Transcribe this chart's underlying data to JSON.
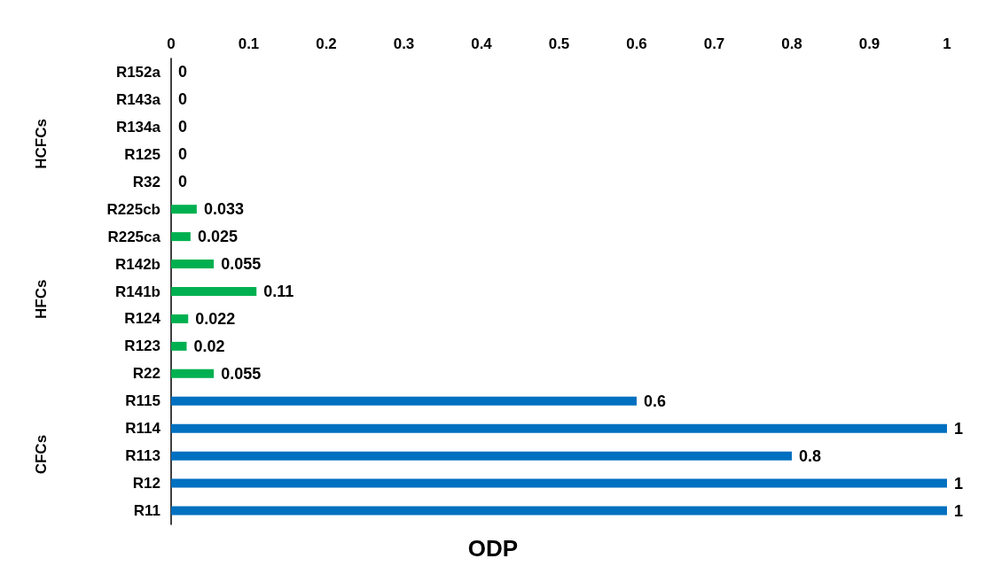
{
  "chart_data": {
    "type": "bar",
    "orientation": "horizontal",
    "xlabel": "ODP",
    "categories": [
      "R152a",
      "R143a",
      "R134a",
      "R125",
      "R32",
      "R225cb",
      "R225ca",
      "R142b",
      "R141b",
      "R124",
      "R123",
      "R22",
      "R115",
      "R114",
      "R113",
      "R12",
      "R11"
    ],
    "values": [
      0,
      0,
      0,
      0,
      0,
      0.033,
      0.025,
      0.055,
      0.11,
      0.022,
      0.02,
      0.055,
      0.6,
      1,
      0.8,
      1,
      1
    ],
    "colors": [
      "#00b050",
      "#00b050",
      "#00b050",
      "#00b050",
      "#00b050",
      "#00b050",
      "#00b050",
      "#00b050",
      "#00b050",
      "#00b050",
      "#00b050",
      "#00b050",
      "#0070c0",
      "#0070c0",
      "#0070c0",
      "#0070c0",
      "#0070c0"
    ],
    "xlim": [
      0,
      1
    ],
    "xticks": [
      0,
      0.1,
      0.2,
      0.3,
      0.4,
      0.5,
      0.6,
      0.7,
      0.8,
      0.9,
      1
    ],
    "data_labels": true,
    "grid": false,
    "annotations": [
      "HCFCs",
      "HFCs",
      "CFCs"
    ]
  }
}
